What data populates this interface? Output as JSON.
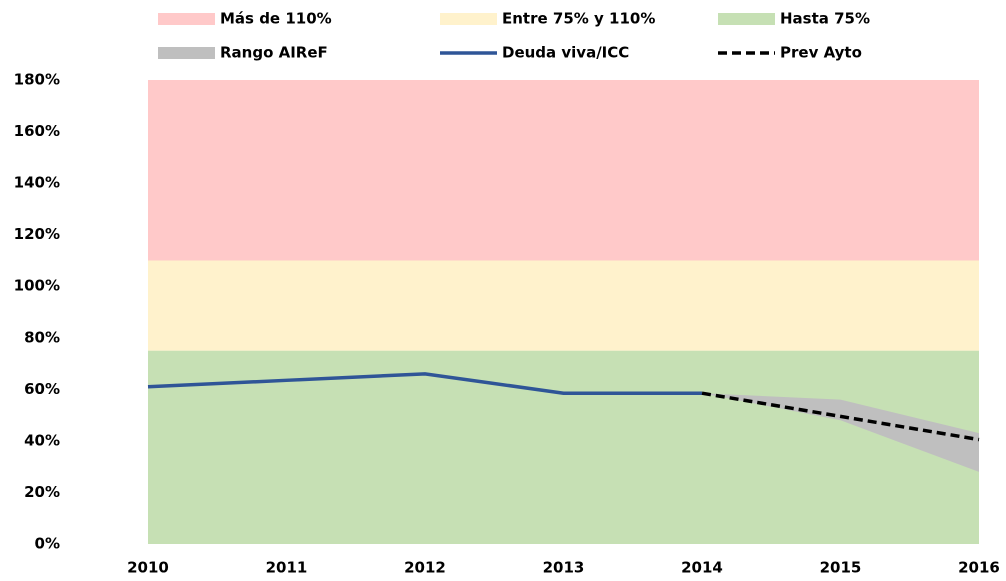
{
  "chart_data": {
    "type": "line",
    "categories": [
      "2010",
      "2011",
      "2012",
      "2013",
      "2014",
      "2015",
      "2016"
    ],
    "ylim": [
      0,
      180
    ],
    "yticks": [
      {
        "value": 0,
        "label": "0%"
      },
      {
        "value": 20,
        "label": "20%"
      },
      {
        "value": 40,
        "label": "40%"
      },
      {
        "value": 60,
        "label": "60%"
      },
      {
        "value": 80,
        "label": "80%"
      },
      {
        "value": 100,
        "label": "100%"
      },
      {
        "value": 120,
        "label": "120%"
      },
      {
        "value": 140,
        "label": "140%"
      },
      {
        "value": 160,
        "label": "160%"
      },
      {
        "value": 180,
        "label": "180%"
      }
    ],
    "series": [
      {
        "name": "Más de 110%",
        "type": "area",
        "color": "#ffc9c9",
        "values": [
          70,
          70,
          70,
          70,
          70,
          70,
          70
        ]
      },
      {
        "name": "Entre 75% y 110%",
        "type": "area",
        "color": "#fff2cc",
        "values": [
          35,
          35,
          35,
          35,
          35,
          35,
          35
        ]
      },
      {
        "name": "Hasta 75%",
        "type": "area",
        "color": "#c6e0b4",
        "values": [
          75,
          75,
          75,
          75,
          75,
          75,
          75
        ]
      },
      {
        "name": "Rango AIReF",
        "type": "range",
        "color": "#bfbfbf",
        "low": [
          null,
          null,
          null,
          null,
          58.5,
          48,
          28
        ],
        "high": [
          null,
          null,
          null,
          null,
          58.5,
          56,
          43
        ]
      },
      {
        "name": "Deuda viva/ICC",
        "type": "line",
        "color": "#2f5597",
        "values": [
          61,
          63.5,
          66,
          58.5,
          58.5,
          null,
          null
        ]
      },
      {
        "name": "Prev Ayto",
        "type": "dashed",
        "color": "#000000",
        "values": [
          null,
          null,
          null,
          null,
          58.5,
          49.5,
          40.5
        ]
      }
    ]
  }
}
